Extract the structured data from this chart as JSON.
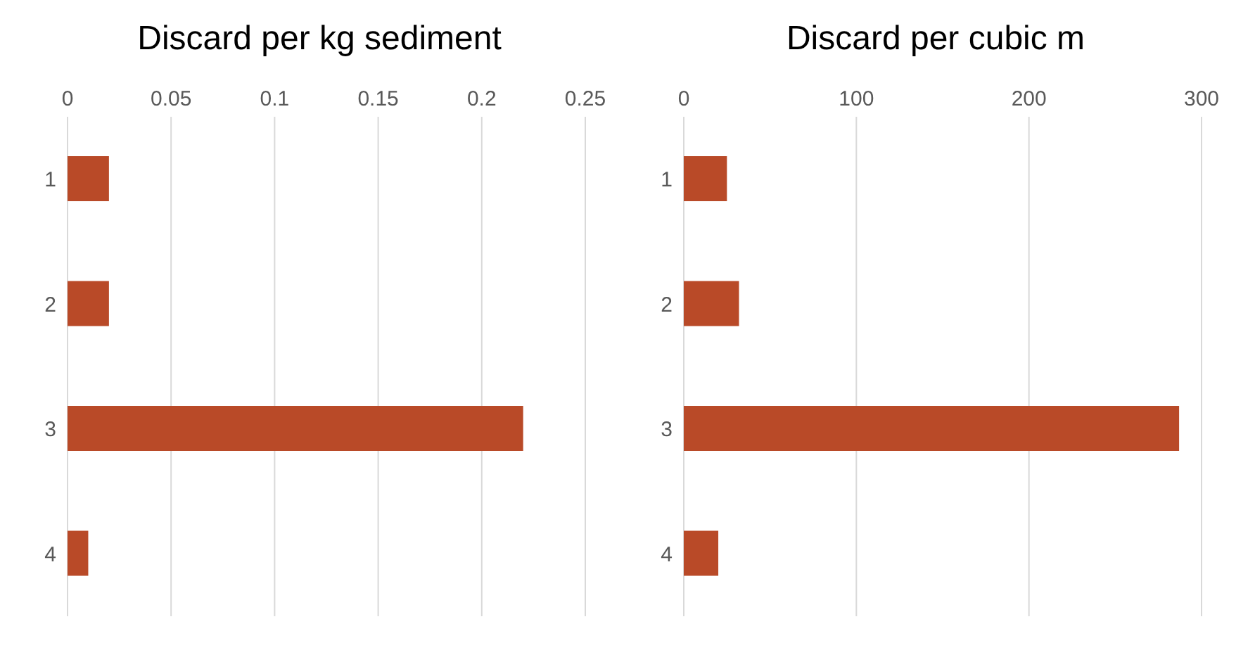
{
  "chart_data": [
    {
      "type": "bar",
      "orientation": "horizontal",
      "title": "Discard per kg sediment",
      "categories": [
        "1",
        "2",
        "3",
        "4"
      ],
      "values": [
        0.02,
        0.02,
        0.22,
        0.01
      ],
      "color": "#b94a28",
      "xlim": [
        0,
        0.25
      ],
      "xticks": [
        0,
        0.05,
        0.1,
        0.15,
        0.2,
        0.25
      ],
      "grid": "x"
    },
    {
      "type": "bar",
      "orientation": "horizontal",
      "title": "Discard per cubic m",
      "categories": [
        "1",
        "2",
        "3",
        "4"
      ],
      "values": [
        25,
        32,
        287,
        20
      ],
      "color": "#b94a28",
      "xlim": [
        0,
        300
      ],
      "xticks": [
        0,
        100,
        200,
        300
      ],
      "grid": "x"
    }
  ]
}
